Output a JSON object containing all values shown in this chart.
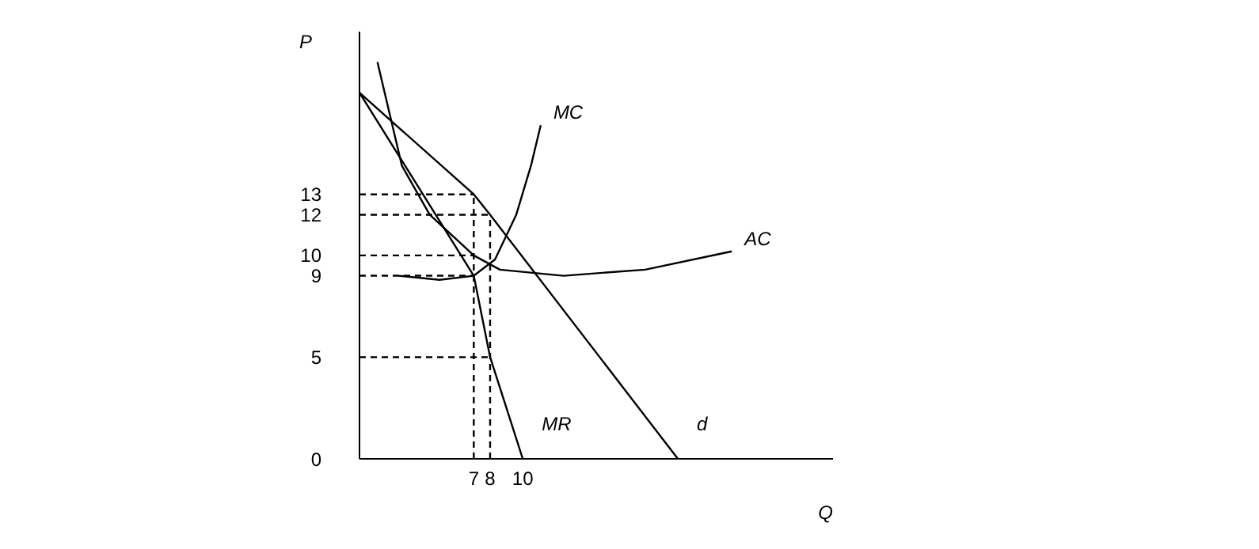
{
  "chart_data": {
    "type": "line",
    "xlabel": "Q",
    "ylabel": "P",
    "xlim": [
      0,
      29
    ],
    "ylim": [
      0,
      21
    ],
    "xticks": [
      7,
      8,
      10
    ],
    "yticks": [
      0,
      5,
      9,
      10,
      12,
      13
    ],
    "grid": false,
    "legend": false,
    "marker": "none",
    "line_style": "solid",
    "series": [
      {
        "name": "d",
        "color": "#000000",
        "x": [
          0,
          7,
          8,
          19.5
        ],
        "values": [
          18,
          13,
          12,
          0
        ]
      },
      {
        "name": "MR",
        "color": "#000000",
        "x": [
          0,
          7,
          8,
          10
        ],
        "values": [
          18,
          9,
          5,
          0
        ]
      },
      {
        "name": "MC",
        "color": "#000000",
        "x": [
          2.4,
          4.9,
          7,
          8.3,
          9.6,
          10.5,
          11.1
        ],
        "values": [
          9,
          8.8,
          9,
          9.8,
          12,
          14.4,
          16.4
        ]
      },
      {
        "name": "AC",
        "color": "#000000",
        "x": [
          1.1,
          2.6,
          4.3,
          7,
          8.6,
          12.5,
          17.5,
          22.8
        ],
        "values": [
          19.5,
          14.4,
          12,
          10,
          9.3,
          9,
          9.3,
          10.2
        ]
      },
      {
        "color": "#000000",
        "line_style": "dashed",
        "x": [
          0,
          7
        ],
        "values": [
          13,
          13
        ]
      },
      {
        "color": "#000000",
        "line_style": "dashed",
        "x": [
          7,
          7
        ],
        "values": [
          0,
          13
        ]
      },
      {
        "color": "#000000",
        "line_style": "dashed",
        "x": [
          0,
          8
        ],
        "values": [
          12,
          12
        ]
      },
      {
        "color": "#000000",
        "line_style": "dashed",
        "x": [
          8,
          8
        ],
        "values": [
          0,
          12
        ]
      },
      {
        "color": "#000000",
        "line_style": "dashed",
        "x": [
          0,
          7
        ],
        "values": [
          10,
          10
        ]
      },
      {
        "color": "#000000",
        "line_style": "dashed",
        "x": [
          0,
          7
        ],
        "values": [
          9,
          9
        ]
      },
      {
        "color": "#000000",
        "line_style": "dashed",
        "x": [
          0,
          8
        ],
        "values": [
          5,
          5
        ]
      }
    ]
  }
}
